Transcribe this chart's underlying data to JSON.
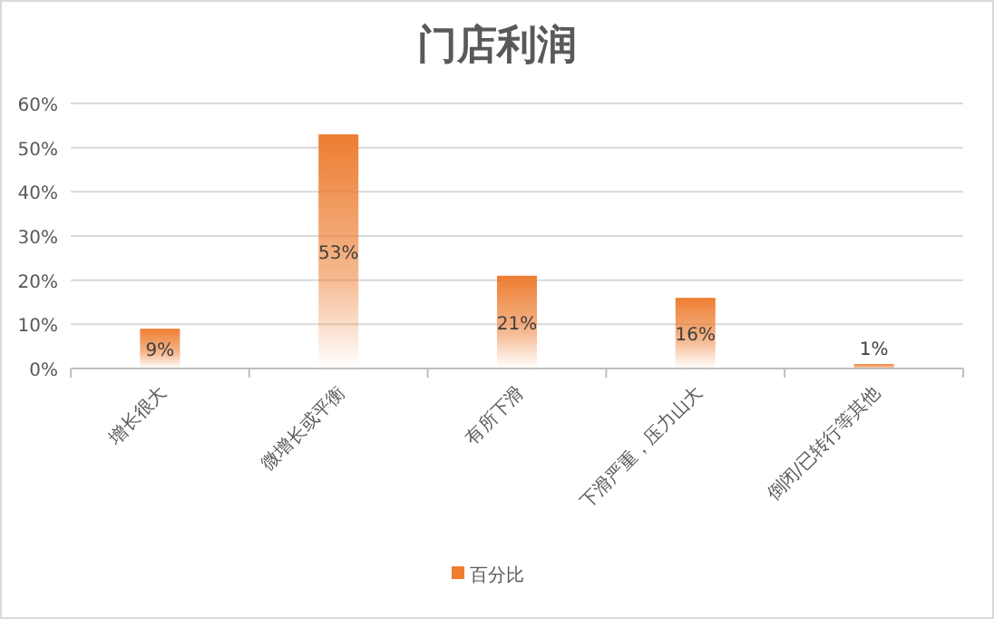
{
  "chart_data": {
    "type": "bar",
    "title": "门店利润",
    "categories": [
      "增长很大",
      "微增长或平衡",
      "有所下滑",
      "下滑严重，压力山大",
      "倒闭/已转行等其他"
    ],
    "series": [
      {
        "name": "百分比",
        "color": "#ed7d31",
        "values": [
          9,
          53,
          21,
          16,
          1
        ],
        "value_labels": [
          "9%",
          "53%",
          "21%",
          "16%",
          "1%"
        ]
      }
    ],
    "ylim": [
      0,
      60
    ],
    "yticks": [
      {
        "value": 0,
        "label": "0%"
      },
      {
        "value": 10,
        "label": "10%"
      },
      {
        "value": 20,
        "label": "20%"
      },
      {
        "value": 30,
        "label": "30%"
      },
      {
        "value": 40,
        "label": "40%"
      },
      {
        "value": 50,
        "label": "50%"
      },
      {
        "value": 60,
        "label": "60%"
      }
    ],
    "grid": "y",
    "legend": "bottom"
  }
}
